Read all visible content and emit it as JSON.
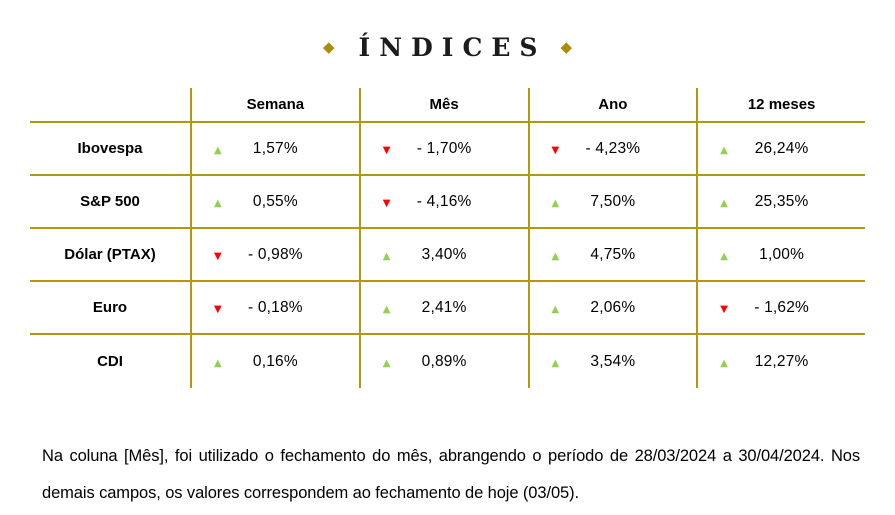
{
  "title": {
    "text": "ÍNDICES"
  },
  "icons": {
    "diamond": "◆",
    "up_arrow": "▲",
    "down_arrow": "▼"
  },
  "colors": {
    "border_gold": "#b3970f",
    "diamond_gold": "#ab8d0b",
    "up_green": "#92d050",
    "down_red": "#ff0000"
  },
  "table": {
    "columns": [
      "Semana",
      "Mês",
      "Ano",
      "12 meses"
    ],
    "rows": [
      {
        "label": "Ibovespa",
        "cells": [
          {
            "trend": "up",
            "arrow": "▲",
            "value": "1,57%"
          },
          {
            "trend": "down",
            "arrow": "▼",
            "value": "- 1,70%"
          },
          {
            "trend": "down",
            "arrow": "▼",
            "value": "- 4,23%"
          },
          {
            "trend": "up",
            "arrow": "▲",
            "value": "26,24%"
          }
        ]
      },
      {
        "label": "S&P 500",
        "cells": [
          {
            "trend": "up",
            "arrow": "▲",
            "value": "0,55%"
          },
          {
            "trend": "down",
            "arrow": "▼",
            "value": "- 4,16%"
          },
          {
            "trend": "up",
            "arrow": "▲",
            "value": "7,50%"
          },
          {
            "trend": "up",
            "arrow": "▲",
            "value": "25,35%"
          }
        ]
      },
      {
        "label": "Dólar (PTAX)",
        "cells": [
          {
            "trend": "down",
            "arrow": "▼",
            "value": "- 0,98%"
          },
          {
            "trend": "up",
            "arrow": "▲",
            "value": "3,40%"
          },
          {
            "trend": "up",
            "arrow": "▲",
            "value": "4,75%"
          },
          {
            "trend": "up",
            "arrow": "▲",
            "value": "1,00%"
          }
        ]
      },
      {
        "label": "Euro",
        "cells": [
          {
            "trend": "down",
            "arrow": "▼",
            "value": "- 0,18%"
          },
          {
            "trend": "up",
            "arrow": "▲",
            "value": "2,41%"
          },
          {
            "trend": "up",
            "arrow": "▲",
            "value": "2,06%"
          },
          {
            "trend": "down",
            "arrow": "▼",
            "value": "- 1,62%"
          }
        ]
      },
      {
        "label": "CDI",
        "cells": [
          {
            "trend": "up",
            "arrow": "▲",
            "value": "0,16%"
          },
          {
            "trend": "up",
            "arrow": "▲",
            "value": "0,89%"
          },
          {
            "trend": "up",
            "arrow": "▲",
            "value": "3,54%"
          },
          {
            "trend": "up",
            "arrow": "▲",
            "value": "12,27%"
          }
        ]
      }
    ]
  },
  "footnote": "Na coluna [Mês], foi utilizado o fechamento do mês, abrangendo o período de 28/03/2024 a 30/04/2024. Nos demais campos, os valores correspondem ao fechamento de hoje (03/05)."
}
